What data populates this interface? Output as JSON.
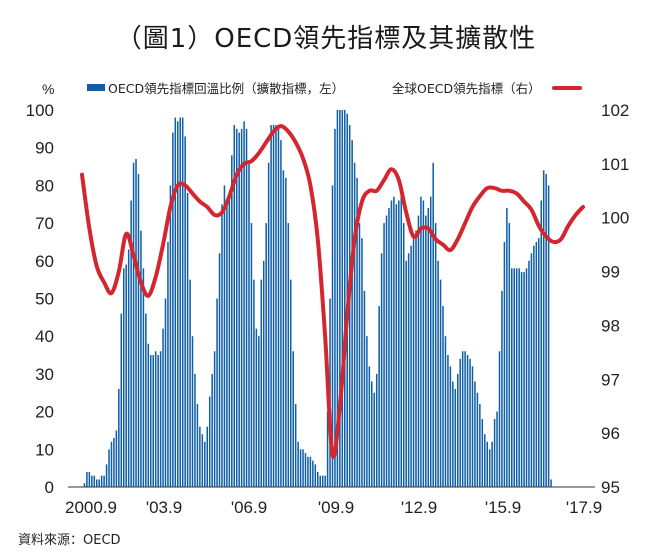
{
  "title": "（圖1）OECD領先指標及其擴散性",
  "source": "資料來源：OECD",
  "chart_data": {
    "type": "bar+line",
    "legend": {
      "bar_label": "OECD領先指標回溫比例（擴散指標，左）",
      "line_label": "全球OECD領先指標（右）",
      "placement": "top"
    },
    "left_axis": {
      "unit": "%",
      "range": [
        0,
        100
      ],
      "ticks": [
        "0",
        "10",
        "20",
        "30",
        "40",
        "50",
        "60",
        "70",
        "80",
        "90",
        "100"
      ]
    },
    "right_axis": {
      "range": [
        95,
        102
      ],
      "ticks": [
        "95",
        "96",
        "97",
        "98",
        "99",
        "100",
        "101",
        "102"
      ]
    },
    "x_ticks": [
      "2000.9",
      "'03.9",
      "'06.9",
      "'09.9",
      "'12.9",
      "'15.9",
      "'17.9"
    ],
    "x_range": [
      "2000-09",
      "2017-09"
    ],
    "series": [
      {
        "name": "OECD領先指標回溫比例（擴散指標，左）",
        "type": "bar",
        "color": "#0f5ea8",
        "x_start": "2000-09",
        "frequency": "monthly",
        "values": [
          0,
          1,
          4,
          4,
          3,
          3,
          2,
          2,
          3,
          3,
          6,
          10,
          12,
          13,
          15,
          26,
          46,
          58,
          59,
          63,
          76,
          86,
          87,
          83,
          68,
          58,
          46,
          38,
          35,
          35,
          36,
          35,
          36,
          42,
          50,
          65,
          80,
          94,
          98,
          97,
          98,
          98,
          93,
          78,
          55,
          40,
          30,
          22,
          16,
          14,
          12,
          16,
          24,
          30,
          36,
          50,
          62,
          75,
          80,
          75,
          78,
          88,
          96,
          95,
          94,
          95,
          97,
          95,
          86,
          70,
          55,
          42,
          40,
          55,
          60,
          70,
          86,
          96,
          96,
          96,
          95,
          92,
          84,
          82,
          70,
          55,
          36,
          22,
          12,
          10,
          10,
          9,
          8,
          8,
          7,
          6,
          4,
          3,
          3,
          3,
          20,
          50,
          80,
          95,
          100,
          100,
          100,
          100,
          99,
          96,
          92,
          86,
          82,
          70,
          66,
          52,
          40,
          32,
          28,
          25,
          30,
          48,
          62,
          70,
          72,
          74,
          76,
          77,
          75,
          76,
          78,
          70,
          60,
          62,
          64,
          66,
          68,
          72,
          77,
          76,
          72,
          74,
          77,
          86,
          70,
          60,
          55,
          48,
          40,
          35,
          32,
          28,
          26,
          30,
          34,
          36,
          36,
          35,
          34,
          32,
          28,
          25,
          22,
          18,
          14,
          12,
          10,
          12,
          18,
          20,
          36,
          52,
          65,
          74,
          70,
          58,
          58,
          58,
          58,
          57,
          57,
          58,
          60,
          62,
          64,
          65,
          66,
          76,
          84,
          83,
          80,
          2
        ]
      },
      {
        "name": "全球OECD領先指標（右）",
        "type": "line",
        "color": "#d4262f",
        "points": [
          [
            "2000-09",
            100.8
          ],
          [
            "2000-12",
            99.8
          ],
          [
            "2001-03",
            99.1
          ],
          [
            "2001-06",
            98.8
          ],
          [
            "2001-09",
            98.6
          ],
          [
            "2001-12",
            99.0
          ],
          [
            "2002-03",
            99.7
          ],
          [
            "2002-06",
            99.3
          ],
          [
            "2002-09",
            98.8
          ],
          [
            "2002-12",
            98.55
          ],
          [
            "2003-03",
            98.9
          ],
          [
            "2003-06",
            99.5
          ],
          [
            "2003-09",
            100.2
          ],
          [
            "2003-12",
            100.6
          ],
          [
            "2004-03",
            100.6
          ],
          [
            "2004-06",
            100.45
          ],
          [
            "2004-09",
            100.3
          ],
          [
            "2004-12",
            100.2
          ],
          [
            "2005-03",
            100.05
          ],
          [
            "2005-06",
            100.1
          ],
          [
            "2005-09",
            100.4
          ],
          [
            "2005-12",
            100.8
          ],
          [
            "2006-03",
            101.0
          ],
          [
            "2006-06",
            101.05
          ],
          [
            "2006-09",
            101.2
          ],
          [
            "2006-12",
            101.4
          ],
          [
            "2007-03",
            101.6
          ],
          [
            "2007-06",
            101.7
          ],
          [
            "2007-09",
            101.6
          ],
          [
            "2007-12",
            101.4
          ],
          [
            "2008-03",
            101.1
          ],
          [
            "2008-06",
            100.6
          ],
          [
            "2008-09",
            99.6
          ],
          [
            "2008-12",
            97.8
          ],
          [
            "2009-03",
            95.6
          ],
          [
            "2009-06",
            96.5
          ],
          [
            "2009-09",
            98.2
          ],
          [
            "2009-12",
            99.6
          ],
          [
            "2010-03",
            100.3
          ],
          [
            "2010-06",
            100.5
          ],
          [
            "2010-09",
            100.5
          ],
          [
            "2010-12",
            100.7
          ],
          [
            "2011-03",
            100.9
          ],
          [
            "2011-06",
            100.7
          ],
          [
            "2011-09",
            100.1
          ],
          [
            "2011-12",
            99.65
          ],
          [
            "2012-03",
            99.8
          ],
          [
            "2012-06",
            99.8
          ],
          [
            "2012-09",
            99.6
          ],
          [
            "2012-12",
            99.5
          ],
          [
            "2013-03",
            99.4
          ],
          [
            "2013-06",
            99.6
          ],
          [
            "2013-09",
            99.9
          ],
          [
            "2013-12",
            100.2
          ],
          [
            "2014-03",
            100.4
          ],
          [
            "2014-06",
            100.55
          ],
          [
            "2014-09",
            100.55
          ],
          [
            "2014-12",
            100.5
          ],
          [
            "2015-03",
            100.5
          ],
          [
            "2015-06",
            100.45
          ],
          [
            "2015-09",
            100.3
          ],
          [
            "2015-12",
            100.15
          ],
          [
            "2016-03",
            99.85
          ],
          [
            "2016-06",
            99.65
          ],
          [
            "2016-09",
            99.55
          ],
          [
            "2016-12",
            99.6
          ],
          [
            "2017-03",
            99.85
          ],
          [
            "2017-06",
            100.05
          ],
          [
            "2017-09",
            100.2
          ]
        ]
      }
    ]
  }
}
